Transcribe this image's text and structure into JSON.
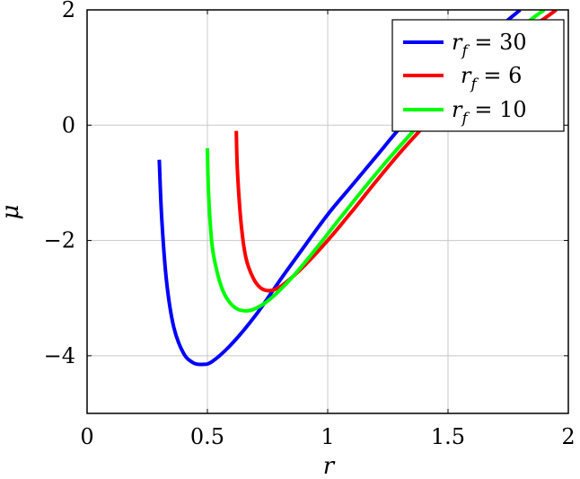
{
  "chart_data": {
    "type": "line",
    "title": "",
    "xlabel": "r",
    "ylabel": "μ",
    "xlim": [
      0,
      2
    ],
    "ylim": [
      -5,
      2
    ],
    "grid": true,
    "legend_position": "top-right",
    "x_ticks": [
      0,
      0.5,
      1,
      1.5,
      2
    ],
    "x_tick_labels": [
      "0",
      "0.5",
      "1",
      "1.5",
      "2"
    ],
    "y_ticks": [
      -4,
      -2,
      0,
      2
    ],
    "y_tick_labels": [
      "−4",
      "−2",
      "0",
      "2"
    ],
    "series": [
      {
        "name": "r_f = 30",
        "color": "#0000ff",
        "x": [
          0.3,
          0.31,
          0.33,
          0.36,
          0.4,
          0.44,
          0.48,
          0.52,
          0.6,
          0.7,
          0.8,
          0.9,
          1.0,
          1.1,
          1.2,
          1.3,
          1.4,
          1.5,
          1.6,
          1.7,
          1.8
        ],
        "y": [
          -0.6,
          -1.6,
          -2.7,
          -3.5,
          -3.95,
          -4.12,
          -4.15,
          -4.1,
          -3.8,
          -3.3,
          -2.7,
          -2.12,
          -1.55,
          -1.05,
          -0.55,
          -0.05,
          0.4,
          0.85,
          1.25,
          1.65,
          2.0
        ]
      },
      {
        "name": "r_f = 6",
        "color": "#ff0000",
        "x": [
          0.62,
          0.625,
          0.64,
          0.66,
          0.69,
          0.72,
          0.75,
          0.78,
          0.82,
          0.9,
          1.0,
          1.1,
          1.2,
          1.3,
          1.4,
          1.5,
          1.6,
          1.7,
          1.8,
          1.9,
          1.95
        ],
        "y": [
          -0.1,
          -0.8,
          -1.7,
          -2.3,
          -2.65,
          -2.82,
          -2.87,
          -2.85,
          -2.75,
          -2.45,
          -2.0,
          -1.5,
          -0.98,
          -0.48,
          -0.02,
          0.42,
          0.85,
          1.23,
          1.58,
          1.85,
          2.0
        ]
      },
      {
        "name": "r_f = 10",
        "color": "#00ff00",
        "x": [
          0.5,
          0.505,
          0.52,
          0.55,
          0.58,
          0.62,
          0.66,
          0.7,
          0.76,
          0.85,
          0.95,
          1.05,
          1.15,
          1.25,
          1.35,
          1.45,
          1.55,
          1.65,
          1.75,
          1.85,
          1.9
        ],
        "y": [
          -0.4,
          -1.2,
          -2.1,
          -2.7,
          -3.0,
          -3.18,
          -3.22,
          -3.18,
          -3.02,
          -2.65,
          -2.15,
          -1.62,
          -1.1,
          -0.6,
          -0.13,
          0.32,
          0.75,
          1.15,
          1.52,
          1.85,
          2.0
        ]
      }
    ]
  },
  "legend": {
    "items": [
      {
        "var": "r",
        "sub": "f",
        "rest": " = 30",
        "color": "#0000ff"
      },
      {
        "var": "r",
        "sub": "f",
        "rest": " = 6",
        "color": "#ff0000"
      },
      {
        "var": "r",
        "sub": "f",
        "rest": " = 10",
        "color": "#00ff00"
      }
    ]
  }
}
